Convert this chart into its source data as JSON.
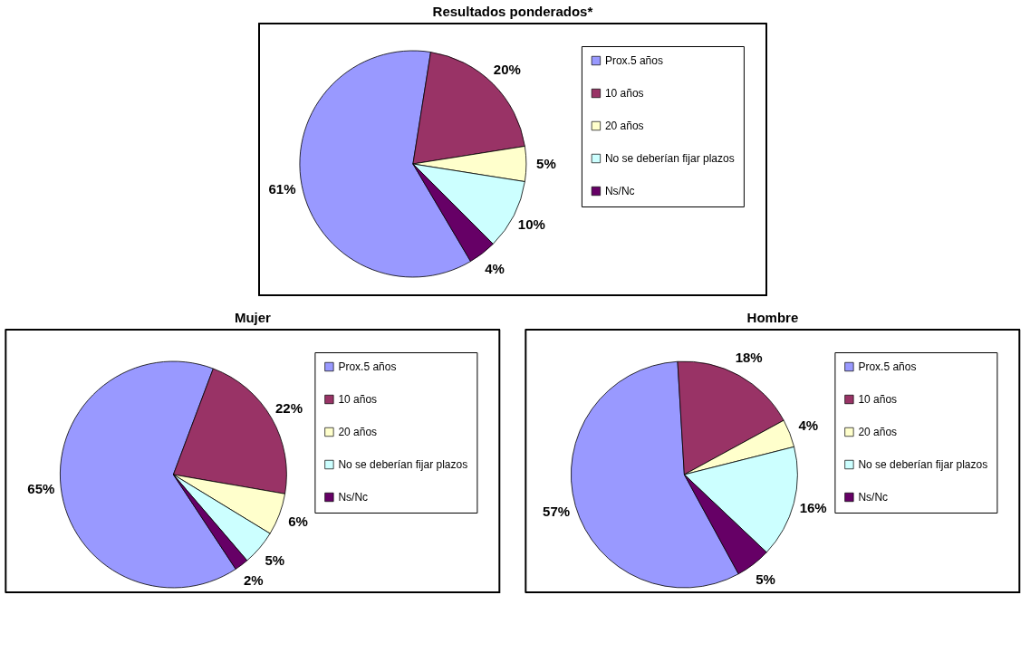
{
  "chart_data": [
    {
      "type": "pie",
      "title": "Resultados ponderados*",
      "categories": [
        "Prox.5 años",
        "10 años",
        "20 años",
        "No se deberían fijar plazos",
        "Ns/Nc"
      ],
      "values": [
        61,
        20,
        5,
        10,
        4
      ],
      "colors": [
        "#9999ff",
        "#993366",
        "#ffffcc",
        "#ccffff",
        "#660066"
      ],
      "value_labels": [
        "61%",
        "20%",
        "5%",
        "10%",
        "4%"
      ],
      "legend": "right"
    },
    {
      "type": "pie",
      "title": "Mujer",
      "categories": [
        "Prox.5 años",
        "10 años",
        "20 años",
        "No se deberían fijar plazos",
        "Ns/Nc"
      ],
      "values": [
        65,
        22,
        6,
        5,
        2
      ],
      "colors": [
        "#9999ff",
        "#993366",
        "#ffffcc",
        "#ccffff",
        "#660066"
      ],
      "value_labels": [
        "65%",
        "22%",
        "6%",
        "5%",
        "2%"
      ],
      "legend": "right"
    },
    {
      "type": "pie",
      "title": "Hombre",
      "categories": [
        "Prox.5 años",
        "10 años",
        "20 años",
        "No se deberían fijar plazos",
        "Ns/Nc"
      ],
      "values": [
        57,
        18,
        4,
        16,
        5
      ],
      "colors": [
        "#9999ff",
        "#993366",
        "#ffffcc",
        "#ccffff",
        "#660066"
      ],
      "value_labels": [
        "57%",
        "18%",
        "4%",
        "16%",
        "5%"
      ],
      "legend": "right"
    }
  ]
}
